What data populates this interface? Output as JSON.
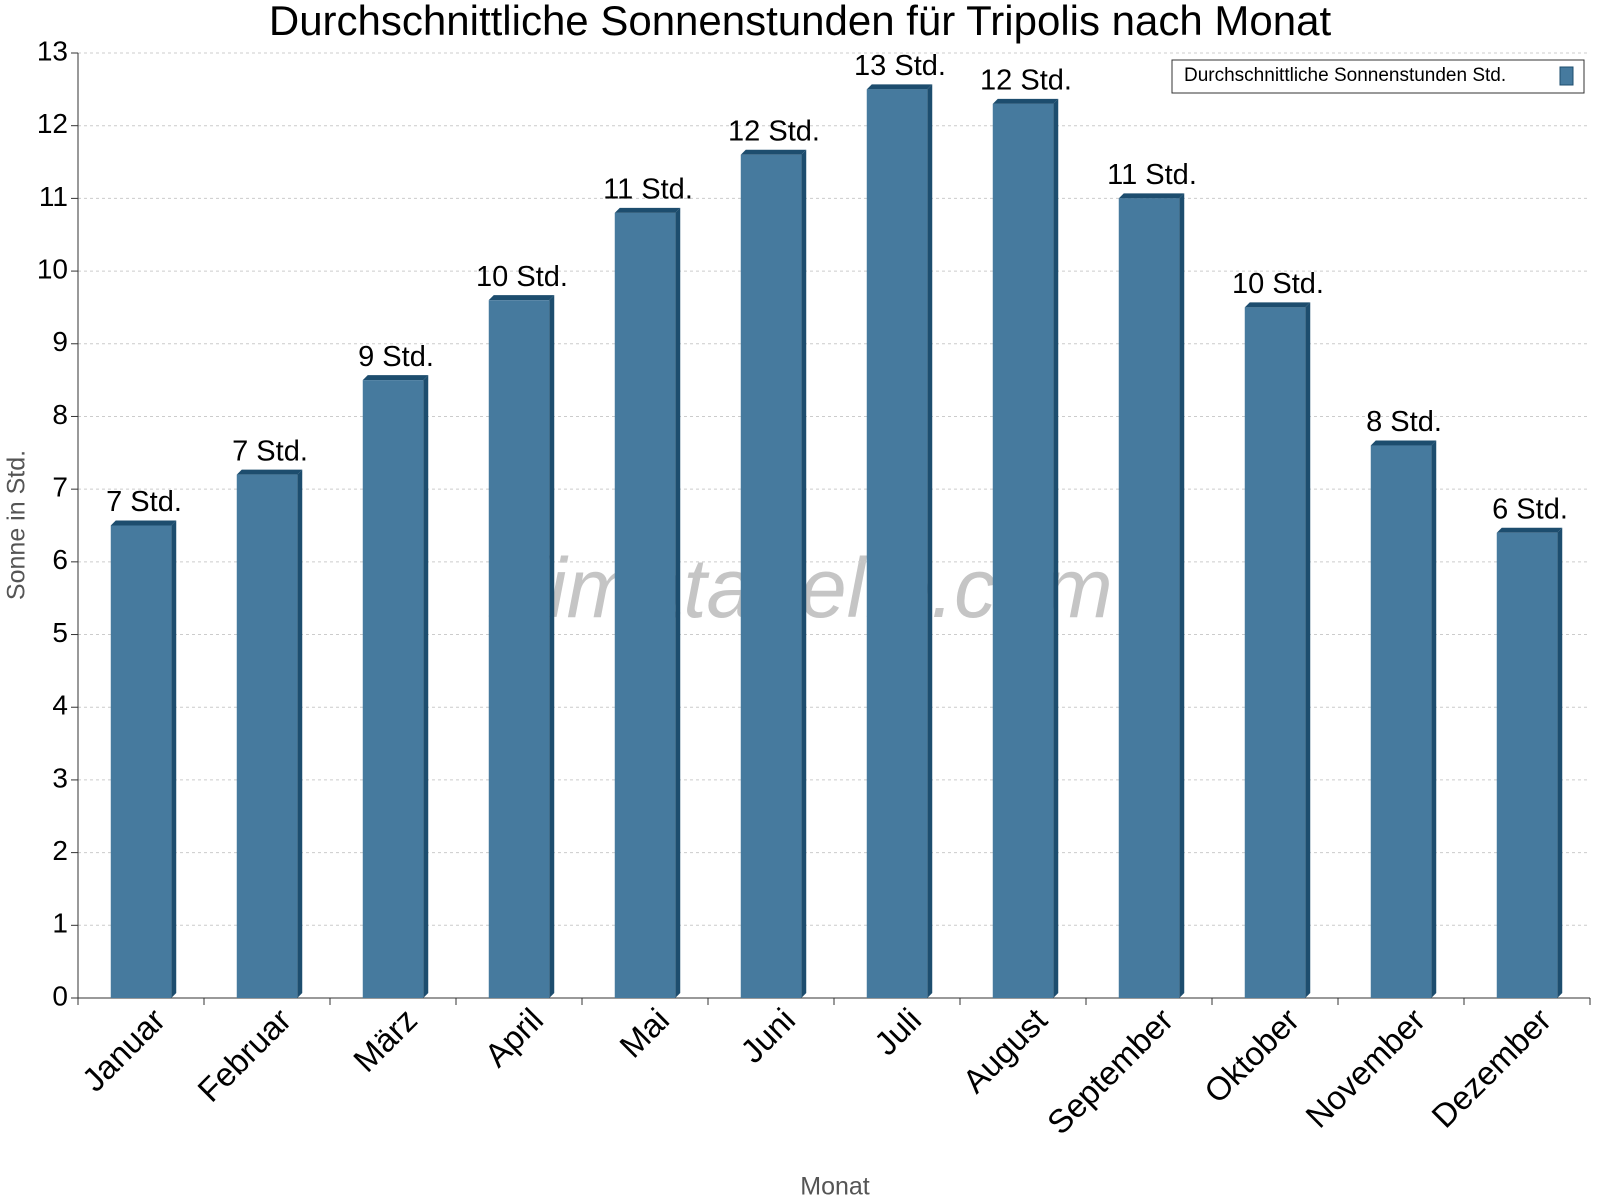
{
  "chart_data": {
    "type": "bar",
    "title": "Durchschnittliche Sonnenstunden für Tripolis nach Monat",
    "x_label": "Monat",
    "y_label": "Sonne in Std.",
    "watermark": "klimatabelle.com",
    "categories": [
      "Januar",
      "Februar",
      "März",
      "April",
      "Mai",
      "Juni",
      "Juli",
      "August",
      "September",
      "Oktober",
      "November",
      "Dezember"
    ],
    "series": [
      {
        "name": "Durchschnittliche Sonnenstunden Std.",
        "color": "#467a9e",
        "values": [
          6.5,
          7.2,
          8.5,
          9.6,
          10.8,
          11.6,
          12.5,
          12.3,
          11.0,
          9.5,
          7.6,
          6.4
        ],
        "value_labels": [
          "7 Std.",
          "7 Std.",
          "9 Std.",
          "10 Std.",
          "11 Std.",
          "12 Std.",
          "13 Std.",
          "12 Std.",
          "11 Std.",
          "10 Std.",
          "8 Std.",
          "6 Std."
        ]
      }
    ],
    "ylim": [
      0,
      13
    ],
    "yticks": [
      0,
      1,
      2,
      3,
      4,
      5,
      6,
      7,
      8,
      9,
      10,
      11,
      12,
      13
    ],
    "grid": true,
    "legend": "top-right"
  }
}
